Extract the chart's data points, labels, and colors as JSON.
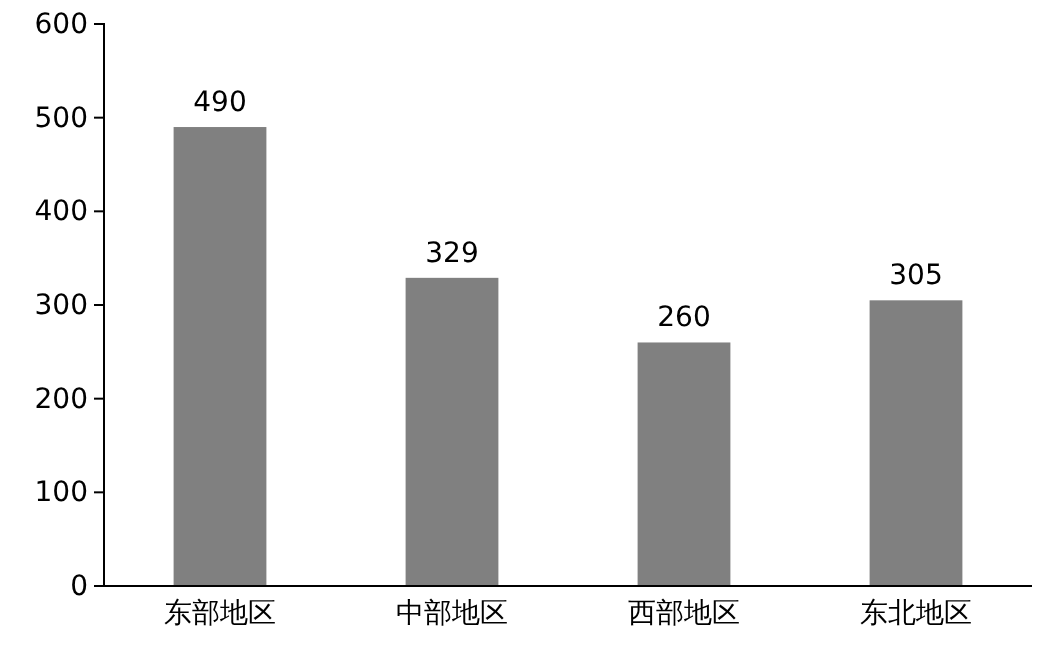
{
  "chart_data": {
    "type": "bar",
    "categories": [
      "东部地区",
      "中部地区",
      "西部地区",
      "东北地区"
    ],
    "values": [
      490,
      329,
      260,
      305
    ],
    "color": "#808080",
    "ylim": [
      0,
      600
    ],
    "yticks": [
      0,
      100,
      200,
      300,
      400,
      500,
      600
    ],
    "data_labels": true
  }
}
